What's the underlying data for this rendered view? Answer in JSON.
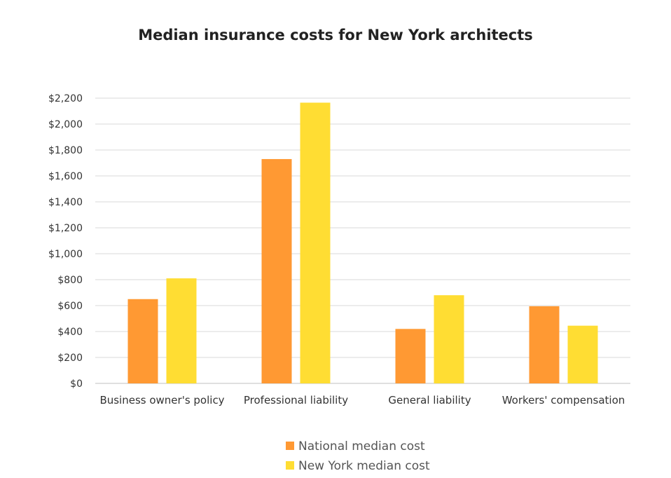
{
  "chart_data": {
    "type": "bar",
    "title": "Median insurance costs for New York architects",
    "xlabel": "",
    "ylabel": "",
    "ylim": [
      0,
      2200
    ],
    "y_ticks": [
      "$0",
      "$200",
      "$400",
      "$600",
      "$800",
      "$1,000",
      "$1,200",
      "$1,400",
      "$1,600",
      "$1,800",
      "$2,000",
      "$2,200"
    ],
    "y_tick_values": [
      0,
      200,
      400,
      600,
      800,
      1000,
      1200,
      1400,
      1600,
      1800,
      2000,
      2200
    ],
    "grid": true,
    "legend_position": "bottom",
    "categories": [
      "Business owner's policy",
      "Professional liability",
      "General liability",
      "Workers' compensation"
    ],
    "series": [
      {
        "name": "National median cost",
        "color": "#FF9933",
        "values": [
          650,
          1730,
          420,
          595
        ]
      },
      {
        "name": "New York median cost",
        "color": "#FFDD33",
        "values": [
          810,
          2165,
          680,
          445
        ]
      }
    ]
  }
}
